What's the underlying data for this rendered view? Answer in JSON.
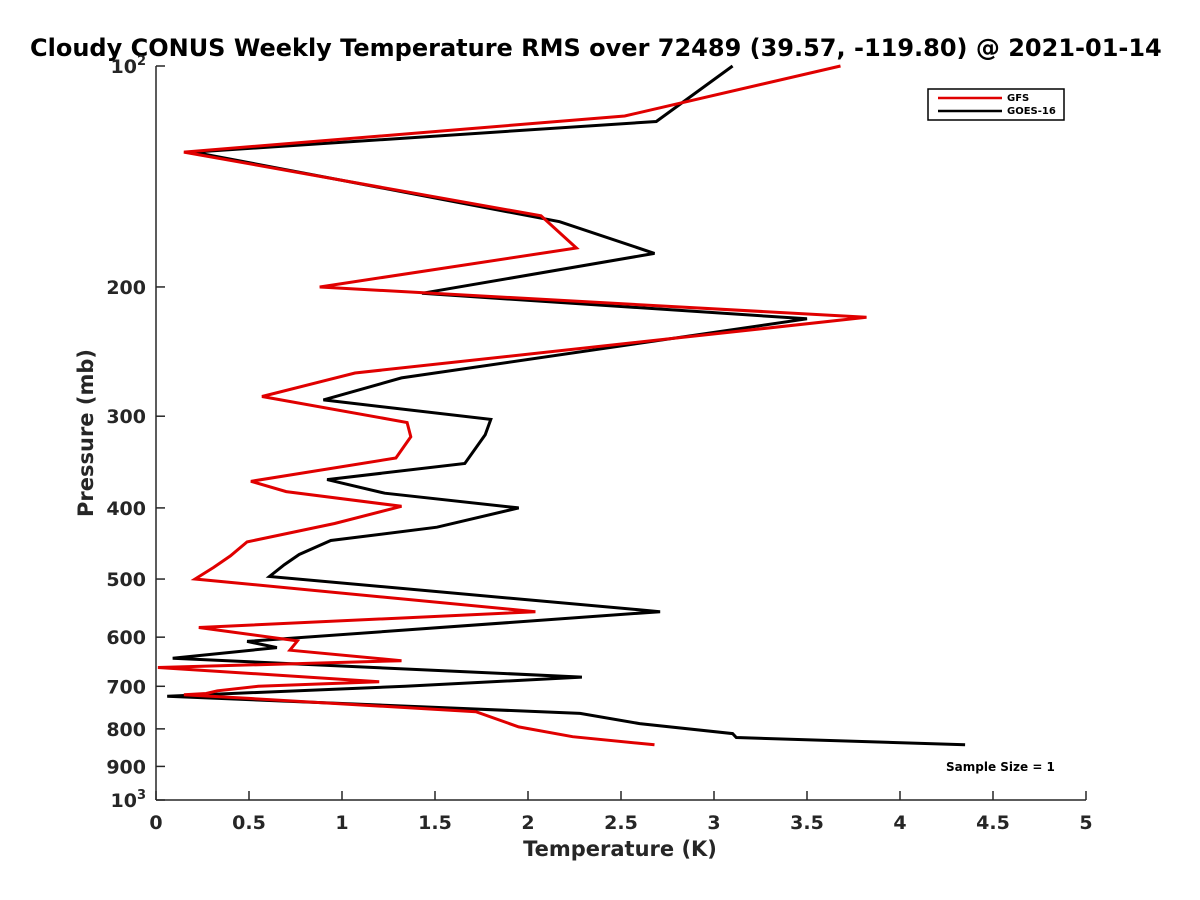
{
  "chart_data": {
    "type": "line",
    "title": "Cloudy CONUS Weekly Temperature RMS over 72489 (39.57, -119.80) @ 2021-01-14",
    "xlabel": "Temperature (K)",
    "ylabel": "Pressure (mb)",
    "xlim": [
      0,
      5
    ],
    "ylim": [
      100,
      1000
    ],
    "y_scale": "log",
    "y_reversed": true,
    "grid": false,
    "legend_position": "top-right",
    "x_ticks": [
      0,
      0.5,
      1,
      1.5,
      2,
      2.5,
      3,
      3.5,
      4,
      4.5,
      5
    ],
    "x_tick_labels": [
      "0",
      "0.5",
      "1",
      "1.5",
      "2",
      "2.5",
      "3",
      "3.5",
      "4",
      "4.5",
      "5"
    ],
    "y_ticks": [
      {
        "value": 100,
        "label": "10",
        "sup": "2"
      },
      {
        "value": 200,
        "label": "200",
        "sup": ""
      },
      {
        "value": 300,
        "label": "300",
        "sup": ""
      },
      {
        "value": 400,
        "label": "400",
        "sup": ""
      },
      {
        "value": 500,
        "label": "500",
        "sup": ""
      },
      {
        "value": 600,
        "label": "600",
        "sup": ""
      },
      {
        "value": 700,
        "label": "700",
        "sup": ""
      },
      {
        "value": 800,
        "label": "800",
        "sup": ""
      },
      {
        "value": 900,
        "label": "900",
        "sup": ""
      },
      {
        "value": 1000,
        "label": "10",
        "sup": "3"
      }
    ],
    "series": [
      {
        "name": "GFS",
        "color": "#e00000",
        "points": [
          [
            3.68,
            100
          ],
          [
            2.52,
            117
          ],
          [
            0.15,
            131
          ],
          [
            2.07,
            160
          ],
          [
            2.26,
            177
          ],
          [
            0.88,
            200
          ],
          [
            3.82,
            220
          ],
          [
            1.07,
            262
          ],
          [
            0.57,
            282
          ],
          [
            1.35,
            306
          ],
          [
            1.37,
            320
          ],
          [
            1.29,
            342
          ],
          [
            0.51,
            368
          ],
          [
            0.7,
            380
          ],
          [
            1.32,
            398
          ],
          [
            0.96,
            420
          ],
          [
            0.49,
            445
          ],
          [
            0.4,
            465
          ],
          [
            0.31,
            482
          ],
          [
            0.21,
            500
          ],
          [
            2.04,
            554
          ],
          [
            0.23,
            582
          ],
          [
            0.76,
            607
          ],
          [
            0.72,
            625
          ],
          [
            1.32,
            646
          ],
          [
            0.01,
            660
          ],
          [
            1.2,
            690
          ],
          [
            0.55,
            700
          ],
          [
            0.33,
            710
          ],
          [
            0.27,
            716
          ],
          [
            0.15,
            719
          ],
          [
            0.5,
            727
          ],
          [
            1.72,
            758
          ],
          [
            1.95,
            795
          ],
          [
            2.24,
            820
          ],
          [
            2.68,
            841
          ]
        ]
      },
      {
        "name": "GOES-16",
        "color": "#000000",
        "points": [
          [
            3.1,
            100
          ],
          [
            2.69,
            119
          ],
          [
            0.2,
            131
          ],
          [
            2.17,
            163
          ],
          [
            2.68,
            180
          ],
          [
            1.43,
            204
          ],
          [
            3.5,
            221
          ],
          [
            1.32,
            266
          ],
          [
            0.9,
            285
          ],
          [
            1.8,
            303
          ],
          [
            1.77,
            318
          ],
          [
            1.66,
            348
          ],
          [
            0.92,
            366
          ],
          [
            1.23,
            382
          ],
          [
            1.95,
            400
          ],
          [
            1.51,
            425
          ],
          [
            0.94,
            443
          ],
          [
            0.77,
            463
          ],
          [
            0.69,
            478
          ],
          [
            0.61,
            496
          ],
          [
            2.71,
            554
          ],
          [
            0.49,
            608
          ],
          [
            0.65,
            620
          ],
          [
            0.09,
            641
          ],
          [
            2.29,
            680
          ],
          [
            1.34,
            700
          ],
          [
            0.06,
            722
          ],
          [
            2.28,
            762
          ],
          [
            2.6,
            787
          ],
          [
            3.1,
            812
          ],
          [
            3.12,
            822
          ],
          [
            4.35,
            841
          ]
        ]
      }
    ],
    "annotations": [
      {
        "text": "Sample Size = 1",
        "x": 4.5,
        "y": 900
      }
    ]
  }
}
